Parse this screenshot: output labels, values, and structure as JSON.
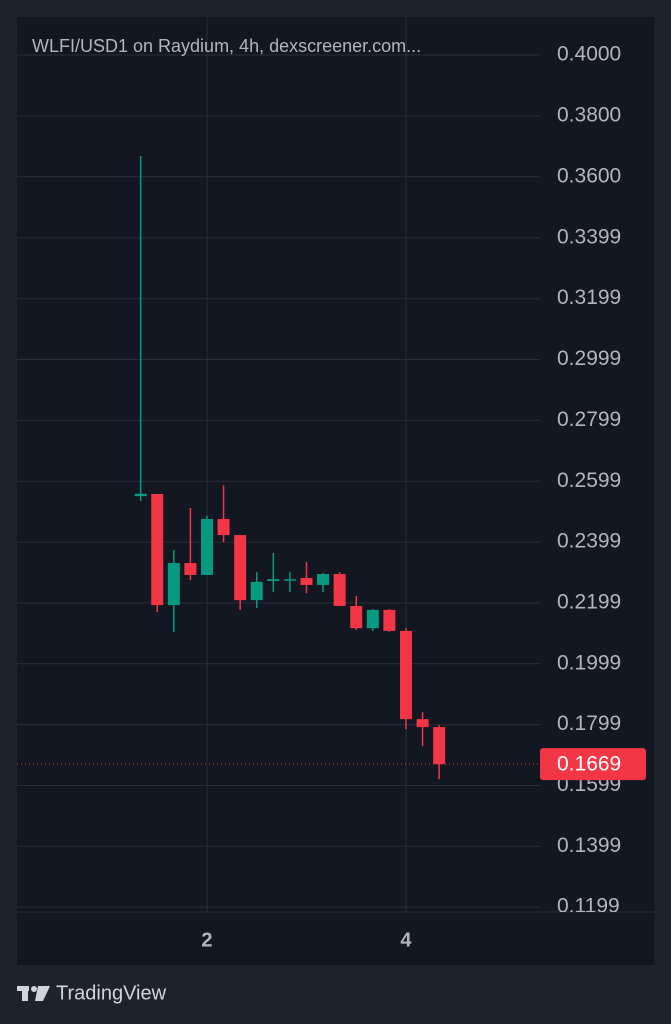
{
  "chart_data": {
    "type": "candlestick",
    "title": "WLFI/USD1 on Raydium, 4h, dexscreener.com...",
    "brand": "TradingView",
    "x": [
      1.3333,
      1.5,
      1.6667,
      1.8333,
      2,
      2.1667,
      2.3333,
      2.5,
      2.6667,
      2.8333,
      3,
      3.1667,
      3.3333,
      3.5,
      3.6667,
      3.8333,
      4,
      4.1667,
      4.3333
    ],
    "open": [
      0.255,
      0.2557,
      0.2192,
      0.233,
      0.2291,
      0.2475,
      0.2422,
      0.2208,
      0.2271,
      0.2274,
      0.2281,
      0.2258,
      0.2294,
      0.2189,
      0.2116,
      0.2176,
      0.2107,
      0.1817,
      0.1791
    ],
    "high": [
      0.3668,
      0.2557,
      0.2373,
      0.2511,
      0.2485,
      0.2586,
      0.2422,
      0.23,
      0.2363,
      0.23,
      0.2333,
      0.2297,
      0.23,
      0.2222,
      0.2179,
      0.2179,
      0.2116,
      0.184,
      0.1797
    ],
    "low": [
      0.2534,
      0.2169,
      0.2103,
      0.2274,
      0.2291,
      0.2399,
      0.2176,
      0.2182,
      0.2235,
      0.2235,
      0.2231,
      0.2235,
      0.2189,
      0.211,
      0.2107,
      0.2104,
      0.1784,
      0.1728,
      0.162
    ],
    "close": [
      0.2558,
      0.2192,
      0.233,
      0.2291,
      0.2475,
      0.2422,
      0.2208,
      0.2268,
      0.2277,
      0.2277,
      0.2258,
      0.2294,
      0.2189,
      0.2116,
      0.2176,
      0.2107,
      0.1817,
      0.1791,
      0.1669
    ],
    "up_color": "#089981",
    "down_color": "#f23645",
    "xlim": [
      0.0905,
      5.347
    ],
    "xticks": [
      2,
      4
    ],
    "ylim": [
      0.1183,
      0.4125
    ],
    "yticks": [
      {
        "value": 0.4,
        "label": "0.4000"
      },
      {
        "value": 0.38,
        "label": "0.3800"
      },
      {
        "value": 0.36,
        "label": "0.3600"
      },
      0.3399,
      0.3199,
      0.2999,
      0.2799,
      0.2599,
      0.2399,
      0.2199,
      0.1999,
      0.1799,
      0.1599,
      0.1399,
      0.1199
    ],
    "last_price": {
      "value": 0.1669,
      "label": "0.1669"
    },
    "grid": true
  }
}
